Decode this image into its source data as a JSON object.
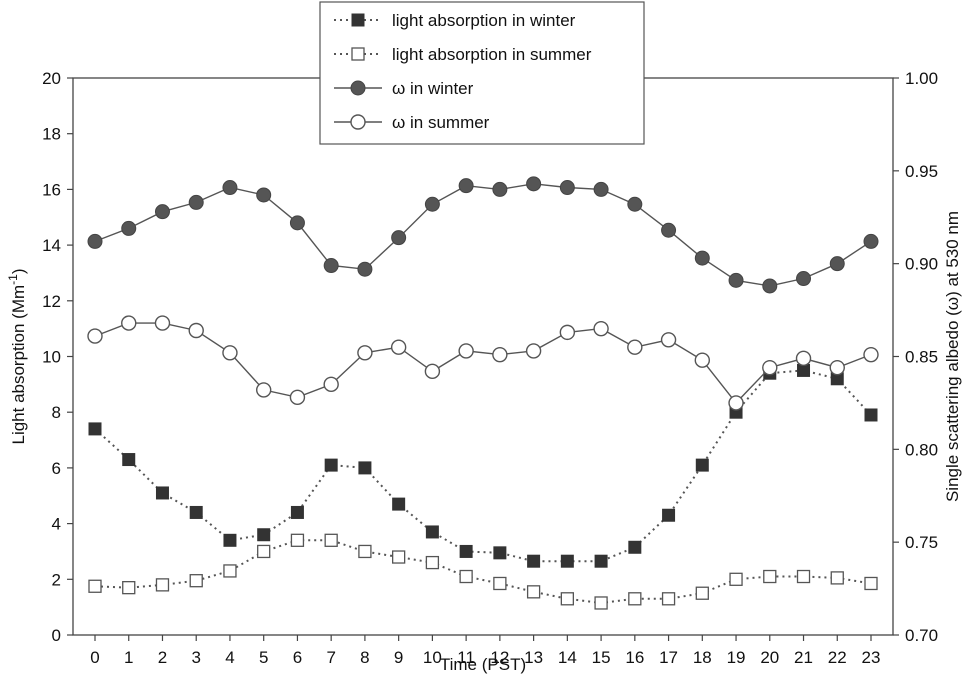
{
  "chart_data": {
    "type": "line",
    "title": "",
    "xlabel": "Time (PST)",
    "ylabel_left": "Light absorption (Mm",
    "ylabel_left_sup": "-1",
    "ylabel_left_close": ")",
    "ylabel_right": "Single scattering albedo (ω) at 530 nm",
    "x": [
      0,
      1,
      2,
      3,
      4,
      5,
      6,
      7,
      8,
      9,
      10,
      11,
      12,
      13,
      14,
      15,
      16,
      17,
      18,
      19,
      20,
      21,
      22,
      23
    ],
    "x_ticks": [
      "0",
      "1",
      "2",
      "3",
      "4",
      "5",
      "6",
      "7",
      "8",
      "9",
      "10",
      "11",
      "12",
      "13",
      "14",
      "15",
      "16",
      "17",
      "18",
      "19",
      "20",
      "21",
      "22",
      "23"
    ],
    "ylim_left": [
      0,
      20
    ],
    "yticks_left": [
      "0",
      "2",
      "4",
      "6",
      "8",
      "10",
      "12",
      "14",
      "16",
      "18",
      "20"
    ],
    "ylim_right": [
      0.7,
      1.0
    ],
    "yticks_right": [
      "0.70",
      "0.75",
      "0.80",
      "0.85",
      "0.90",
      "0.95",
      "1.00"
    ],
    "legend_position": "top-center",
    "grid": false,
    "series": [
      {
        "name": "light absorption in winter",
        "axis": "left",
        "style": "dotted",
        "marker": "square-filled",
        "values": [
          7.4,
          6.3,
          5.1,
          4.4,
          3.4,
          3.6,
          4.4,
          6.1,
          6.0,
          4.7,
          3.7,
          3.0,
          2.95,
          2.65,
          2.65,
          2.65,
          3.15,
          4.3,
          6.1,
          8.0,
          9.4,
          9.5,
          9.2,
          7.9
        ]
      },
      {
        "name": "light absorption in summer",
        "axis": "left",
        "style": "dotted",
        "marker": "square-open",
        "values": [
          1.75,
          1.7,
          1.8,
          1.95,
          2.3,
          3.0,
          3.4,
          3.4,
          3.0,
          2.8,
          2.6,
          2.1,
          1.85,
          1.55,
          1.3,
          1.15,
          1.3,
          1.3,
          1.5,
          2.0,
          2.1,
          2.1,
          2.05,
          1.85
        ]
      },
      {
        "name": "ω in winter",
        "axis": "right",
        "style": "solid",
        "marker": "circle-filled",
        "values": [
          0.912,
          0.919,
          0.928,
          0.933,
          0.941,
          0.937,
          0.922,
          0.899,
          0.897,
          0.914,
          0.932,
          0.942,
          0.94,
          0.943,
          0.941,
          0.94,
          0.932,
          0.918,
          0.903,
          0.891,
          0.888,
          0.892,
          0.9,
          0.912
        ]
      },
      {
        "name": "ω in summer",
        "axis": "right",
        "style": "solid",
        "marker": "circle-open",
        "values": [
          0.861,
          0.868,
          0.868,
          0.864,
          0.852,
          0.832,
          0.828,
          0.835,
          0.852,
          0.855,
          0.842,
          0.853,
          0.851,
          0.853,
          0.863,
          0.865,
          0.855,
          0.859,
          0.848,
          0.825,
          0.844,
          0.849,
          0.844,
          0.851
        ]
      }
    ],
    "colors": {
      "winter_abs": "#333333",
      "summer_abs": "#555555",
      "winter_omega": "#555555",
      "summer_omega": "#555555"
    }
  }
}
